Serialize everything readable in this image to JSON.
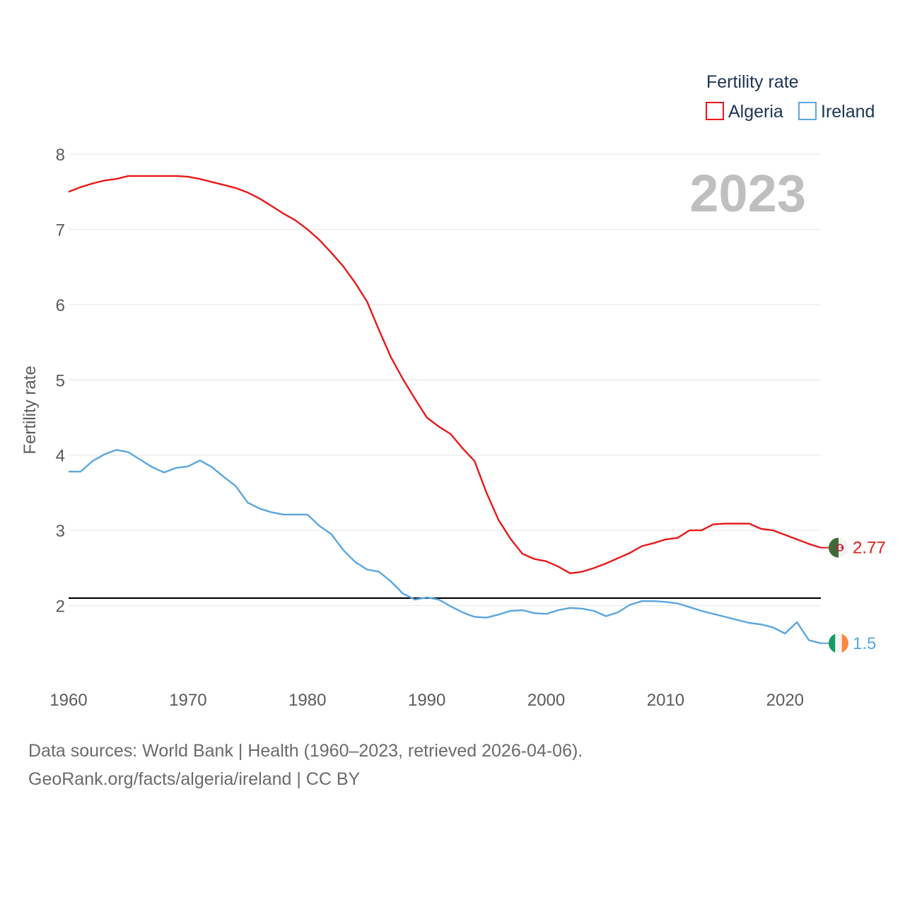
{
  "chart_data": {
    "type": "line",
    "title": "",
    "xlabel": "",
    "ylabel": "Fertility rate",
    "xlim": [
      1960,
      2023
    ],
    "ylim": [
      1.0,
      8.0
    ],
    "x_ticks": [
      "1960",
      "1970",
      "1980",
      "1990",
      "2000",
      "2010",
      "2020"
    ],
    "y_ticks": [
      "2",
      "3",
      "4",
      "5",
      "6",
      "7",
      "8"
    ],
    "current_year": "2023",
    "legend": {
      "title": "Fertility rate",
      "placement": "top-right"
    },
    "reference_line": {
      "value": 2.1,
      "color": "#000000"
    },
    "x": [
      1960,
      1961,
      1962,
      1963,
      1964,
      1965,
      1966,
      1967,
      1968,
      1969,
      1970,
      1971,
      1972,
      1973,
      1974,
      1975,
      1976,
      1977,
      1978,
      1979,
      1980,
      1981,
      1982,
      1983,
      1984,
      1985,
      1986,
      1987,
      1988,
      1989,
      1990,
      1991,
      1992,
      1993,
      1994,
      1995,
      1996,
      1997,
      1998,
      1999,
      2000,
      2001,
      2002,
      2003,
      2004,
      2005,
      2006,
      2007,
      2008,
      2009,
      2010,
      2011,
      2012,
      2013,
      2014,
      2015,
      2016,
      2017,
      2018,
      2019,
      2020,
      2021,
      2022,
      2023
    ],
    "series": [
      {
        "name": "Algeria",
        "color": "#e8191a",
        "end_label": "2.77",
        "values": [
          7.5,
          7.56,
          7.61,
          7.65,
          7.67,
          7.71,
          7.71,
          7.71,
          7.71,
          7.71,
          7.7,
          7.67,
          7.63,
          7.59,
          7.55,
          7.49,
          7.41,
          7.31,
          7.21,
          7.12,
          7.0,
          6.86,
          6.69,
          6.51,
          6.29,
          6.04,
          5.66,
          5.3,
          5.01,
          4.75,
          4.5,
          4.38,
          4.28,
          4.09,
          3.92,
          3.5,
          3.14,
          2.89,
          2.69,
          2.62,
          2.59,
          2.52,
          2.43,
          2.45,
          2.5,
          2.56,
          2.63,
          2.7,
          2.79,
          2.83,
          2.88,
          2.9,
          3.0,
          3.0,
          3.08,
          3.09,
          3.09,
          3.09,
          3.02,
          3.0,
          2.94,
          2.88,
          2.82,
          2.77
        ]
      },
      {
        "name": "Ireland",
        "color": "#5aa6e0",
        "end_label": "1.5",
        "values": [
          3.78,
          3.78,
          3.92,
          4.01,
          4.07,
          4.04,
          3.94,
          3.84,
          3.77,
          3.83,
          3.85,
          3.93,
          3.84,
          3.71,
          3.59,
          3.37,
          3.29,
          3.24,
          3.21,
          3.21,
          3.21,
          3.06,
          2.95,
          2.74,
          2.58,
          2.48,
          2.45,
          2.32,
          2.16,
          2.08,
          2.11,
          2.08,
          1.99,
          1.91,
          1.85,
          1.84,
          1.88,
          1.93,
          1.94,
          1.9,
          1.89,
          1.94,
          1.97,
          1.96,
          1.93,
          1.86,
          1.91,
          2.01,
          2.06,
          2.06,
          2.05,
          2.03,
          1.98,
          1.93,
          1.89,
          1.85,
          1.81,
          1.77,
          1.75,
          1.71,
          1.63,
          1.78,
          1.54,
          1.5
        ]
      }
    ]
  },
  "footer": {
    "line1": "Data sources: World Bank | Health (1960–2023, retrieved 2026-04-06).",
    "line2": "GeoRank.org/facts/algeria/ireland | CC BY"
  }
}
